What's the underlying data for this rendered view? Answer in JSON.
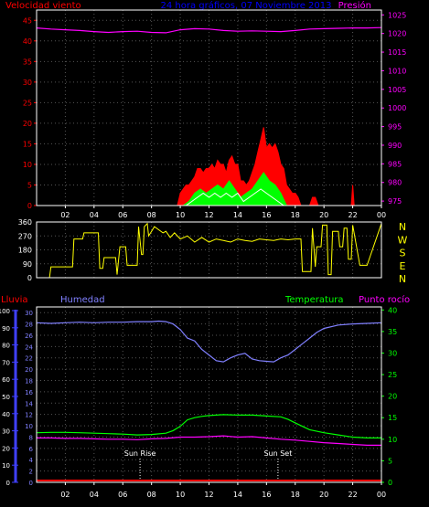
{
  "header": {
    "left_title": "Velocidad viento",
    "center_title": "24 hora gráficos, 07 Noviembre 2013",
    "right_title": "Presión"
  },
  "colors": {
    "background": "#000000",
    "frame": "#ffffff",
    "grid": "#555555",
    "wind": "#ff0000",
    "gust": "#00ff00",
    "avg_wind": "#ffffff",
    "pressure": "#ff00ff",
    "direction": "#ffff00",
    "rain": "#ff0000",
    "humidity": "#8080ff",
    "temperature": "#00ff00",
    "dewpoint": "#ff00ff",
    "title_center": "#0000ff",
    "wind_axis": "#ff0000",
    "pressure_axis": "#ff00ff",
    "humidity_axis": "#8080ff",
    "temperature_axis": "#00ff00",
    "rain_axis": "#4040ff"
  },
  "x_ticks": [
    "02",
    "04",
    "06",
    "08",
    "10",
    "12",
    "14",
    "16",
    "18",
    "20",
    "22",
    "00"
  ],
  "chart_data": [
    {
      "type": "area",
      "name": "wind",
      "title": "24 hora gráficos, 07 Noviembre 2013",
      "y_left_label": "Velocidad viento",
      "y_right_label": "Presión",
      "y_left_ticks": [
        "0",
        "5",
        "10",
        "15",
        "20",
        "25",
        "30",
        "35",
        "40",
        "45"
      ],
      "y_right_ticks": [
        "975",
        "980",
        "985",
        "990",
        "995",
        "1000",
        "1005",
        "1010",
        "1015",
        "1020",
        "1025"
      ],
      "ylim": [
        0,
        47.5
      ],
      "ylim_right": [
        973.8,
        1026.3
      ],
      "xlim": [
        0,
        24
      ],
      "series": [
        {
          "role": "max_wind",
          "x": [
            0,
            9.8,
            10.0,
            10.2,
            10.4,
            10.6,
            10.8,
            11.0,
            11.2,
            11.4,
            11.6,
            11.8,
            12.0,
            12.2,
            12.4,
            12.6,
            12.8,
            13.0,
            13.2,
            13.4,
            13.6,
            13.8,
            14.0,
            14.2,
            14.4,
            14.6,
            14.8,
            15.0,
            15.2,
            15.4,
            15.6,
            15.8,
            16.0,
            16.2,
            16.4,
            16.6,
            16.8,
            17.0,
            17.2,
            17.4,
            17.6,
            17.8,
            18.0,
            18.2,
            18.4,
            19.0,
            19.2,
            19.4,
            19.6,
            21.9,
            22.0,
            22.1,
            24
          ],
          "values": [
            0,
            0,
            3,
            4,
            5,
            5,
            6,
            7,
            9,
            9,
            8,
            9,
            9,
            10,
            9,
            11,
            10,
            10,
            8,
            11,
            12,
            10,
            10,
            6,
            6,
            5,
            6,
            8,
            10,
            13,
            16,
            19,
            14,
            15,
            14,
            15,
            13,
            10,
            9,
            5,
            4,
            3,
            3,
            2,
            0,
            0,
            2,
            2,
            0,
            0,
            5,
            0,
            0
          ]
        },
        {
          "role": "gust",
          "x": [
            0,
            10.2,
            10.6,
            11.0,
            11.4,
            11.8,
            12.2,
            12.6,
            13.0,
            13.4,
            13.8,
            14.2,
            14.6,
            15.0,
            15.4,
            15.8,
            16.2,
            16.6,
            17.0,
            17.4,
            24
          ],
          "values": [
            0,
            0,
            1,
            3,
            4,
            3,
            4,
            5,
            4,
            6,
            4,
            2,
            3,
            4,
            6,
            8,
            6,
            5,
            3,
            0,
            0
          ]
        },
        {
          "role": "avg_wind",
          "x": [
            0,
            10.4,
            10.8,
            11.2,
            11.6,
            12.0,
            12.4,
            12.8,
            13.2,
            13.6,
            14.0,
            14.4,
            14.8,
            15.2,
            15.6,
            16.0,
            16.4,
            16.8,
            17.2,
            24
          ],
          "values": [
            0,
            0,
            1,
            2,
            3,
            2,
            3,
            2,
            3,
            2,
            3,
            1,
            2,
            3,
            4,
            3,
            2,
            1,
            0,
            0
          ]
        },
        {
          "role": "pressure",
          "x": [
            0,
            1,
            2,
            3,
            4,
            5,
            6,
            7,
            8,
            9,
            10,
            11,
            12,
            13,
            14,
            15,
            16,
            17,
            18,
            19,
            20,
            21,
            22,
            23,
            24
          ],
          "values": [
            1021.5,
            1021.2,
            1021.0,
            1020.8,
            1020.5,
            1020.3,
            1020.5,
            1020.6,
            1020.3,
            1020.2,
            1021.0,
            1021.3,
            1021.2,
            1020.8,
            1020.6,
            1020.7,
            1020.6,
            1020.5,
            1020.8,
            1021.2,
            1021.3,
            1021.4,
            1021.5,
            1021.5,
            1021.6
          ]
        }
      ]
    },
    {
      "type": "line",
      "name": "wind_direction",
      "y_left_ticks": [
        "0",
        "90",
        "180",
        "270",
        "360"
      ],
      "y_right_ticks": [
        "N",
        "W",
        "S",
        "E",
        "N"
      ],
      "ylim": [
        0,
        360
      ],
      "xlim": [
        0,
        24
      ],
      "series": [
        {
          "role": "direction",
          "x": [
            0,
            0.9,
            1.0,
            2.5,
            2.6,
            3.2,
            3.3,
            4.3,
            4.4,
            4.6,
            4.7,
            5.5,
            5.6,
            5.8,
            6.2,
            6.3,
            7.0,
            7.1,
            7.3,
            7.4,
            7.5,
            7.7,
            7.8,
            8.0,
            8.2,
            8.5,
            8.8,
            9.0,
            9.3,
            9.6,
            10.0,
            10.5,
            11.0,
            11.5,
            12.0,
            12.5,
            13.0,
            13.5,
            14.0,
            14.5,
            15.0,
            15.5,
            16.0,
            16.5,
            17.0,
            17.5,
            18.0,
            18.4,
            18.5,
            19.1,
            19.2,
            19.4,
            19.5,
            19.8,
            19.9,
            20.2,
            20.3,
            20.5,
            20.6,
            21.0,
            21.1,
            21.3,
            21.4,
            21.6,
            21.7,
            21.9,
            22.0,
            22.5,
            23.0,
            24
          ],
          "values": [
            0,
            0,
            70,
            70,
            250,
            250,
            290,
            290,
            60,
            60,
            130,
            130,
            20,
            200,
            200,
            80,
            80,
            330,
            150,
            150,
            330,
            350,
            270,
            300,
            330,
            310,
            290,
            300,
            260,
            290,
            250,
            270,
            230,
            260,
            230,
            250,
            240,
            230,
            250,
            240,
            235,
            250,
            245,
            240,
            250,
            245,
            250,
            250,
            40,
            40,
            320,
            70,
            200,
            200,
            340,
            340,
            20,
            20,
            300,
            300,
            200,
            200,
            320,
            320,
            120,
            120,
            340,
            80,
            80,
            350
          ]
        }
      ]
    },
    {
      "type": "line",
      "name": "humidity_temperature",
      "title_left": "Lluvia",
      "title_mid": "Humedad",
      "title_temp": "Temperatura",
      "title_dew": "Punto rocío",
      "y_rain_ticks": [
        "0",
        "10",
        "20",
        "30",
        "40",
        "50",
        "60",
        "70",
        "80",
        "90",
        "100"
      ],
      "y_hum_ticks": [
        "0",
        "2",
        "4",
        "6",
        "8",
        "10",
        "12",
        "14",
        "16",
        "18",
        "20",
        "22",
        "24",
        "26",
        "28",
        "30"
      ],
      "y_temp_ticks": [
        "0",
        "5",
        "10",
        "15",
        "20",
        "25",
        "30",
        "35",
        "40"
      ],
      "ylim": [
        0,
        31
      ],
      "ylim_temp": [
        0,
        40.7
      ],
      "xlim": [
        0,
        24
      ],
      "sunrise_label": "Sun Rise",
      "sunset_label": "Sun Set",
      "sunrise_x": 7.2,
      "sunset_x": 16.8,
      "series": [
        {
          "role": "humidity",
          "x": [
            0,
            1,
            2,
            3,
            4,
            5,
            6,
            7,
            8,
            8.5,
            9,
            9.5,
            10,
            10.5,
            11,
            11.5,
            12,
            12.5,
            13,
            13.5,
            14,
            14.5,
            15,
            15.5,
            16,
            16.5,
            17,
            17.5,
            18,
            18.5,
            19,
            19.5,
            20,
            21,
            22,
            23,
            24
          ],
          "values": [
            28.2,
            28.1,
            28.2,
            28.3,
            28.2,
            28.3,
            28.3,
            28.4,
            28.4,
            28.5,
            28.4,
            28.0,
            27.0,
            25.5,
            25.0,
            23.5,
            22.5,
            21.5,
            21.3,
            22.0,
            22.5,
            22.8,
            21.8,
            21.5,
            21.4,
            21.3,
            22.0,
            22.5,
            23.5,
            24.5,
            25.5,
            26.5,
            27.2,
            27.8,
            28.0,
            28.1,
            28.2
          ]
        },
        {
          "role": "temperature",
          "x": [
            0,
            1,
            2,
            3,
            4,
            5,
            6,
            7,
            8,
            9,
            9.5,
            10,
            10.5,
            11,
            11.5,
            12,
            13,
            14,
            15,
            16,
            17,
            17.5,
            18,
            18.5,
            19,
            20,
            21,
            22,
            23,
            24
          ],
          "values": [
            11.5,
            11.6,
            11.6,
            11.5,
            11.4,
            11.3,
            11.2,
            11.0,
            11.1,
            11.4,
            12.0,
            13.0,
            14.5,
            15.0,
            15.3,
            15.5,
            15.7,
            15.6,
            15.6,
            15.4,
            15.2,
            14.6,
            13.8,
            13.0,
            12.2,
            11.5,
            11.0,
            10.5,
            10.3,
            10.3
          ]
        },
        {
          "role": "dewpoint",
          "x": [
            0,
            1,
            2,
            3,
            4,
            5,
            6,
            7,
            8,
            9,
            10,
            11,
            12,
            13,
            14,
            15,
            16,
            17,
            18,
            19,
            20,
            21,
            22,
            23,
            24
          ],
          "values": [
            10.3,
            10.3,
            10.2,
            10.2,
            10.1,
            10.0,
            10.0,
            9.9,
            10.1,
            10.2,
            10.5,
            10.5,
            10.6,
            10.8,
            10.5,
            10.6,
            10.3,
            10.0,
            9.8,
            9.5,
            9.2,
            9.0,
            8.8,
            8.6,
            8.6
          ]
        },
        {
          "role": "rain",
          "x": [
            0,
            24
          ],
          "values": [
            0,
            0
          ]
        }
      ]
    }
  ]
}
